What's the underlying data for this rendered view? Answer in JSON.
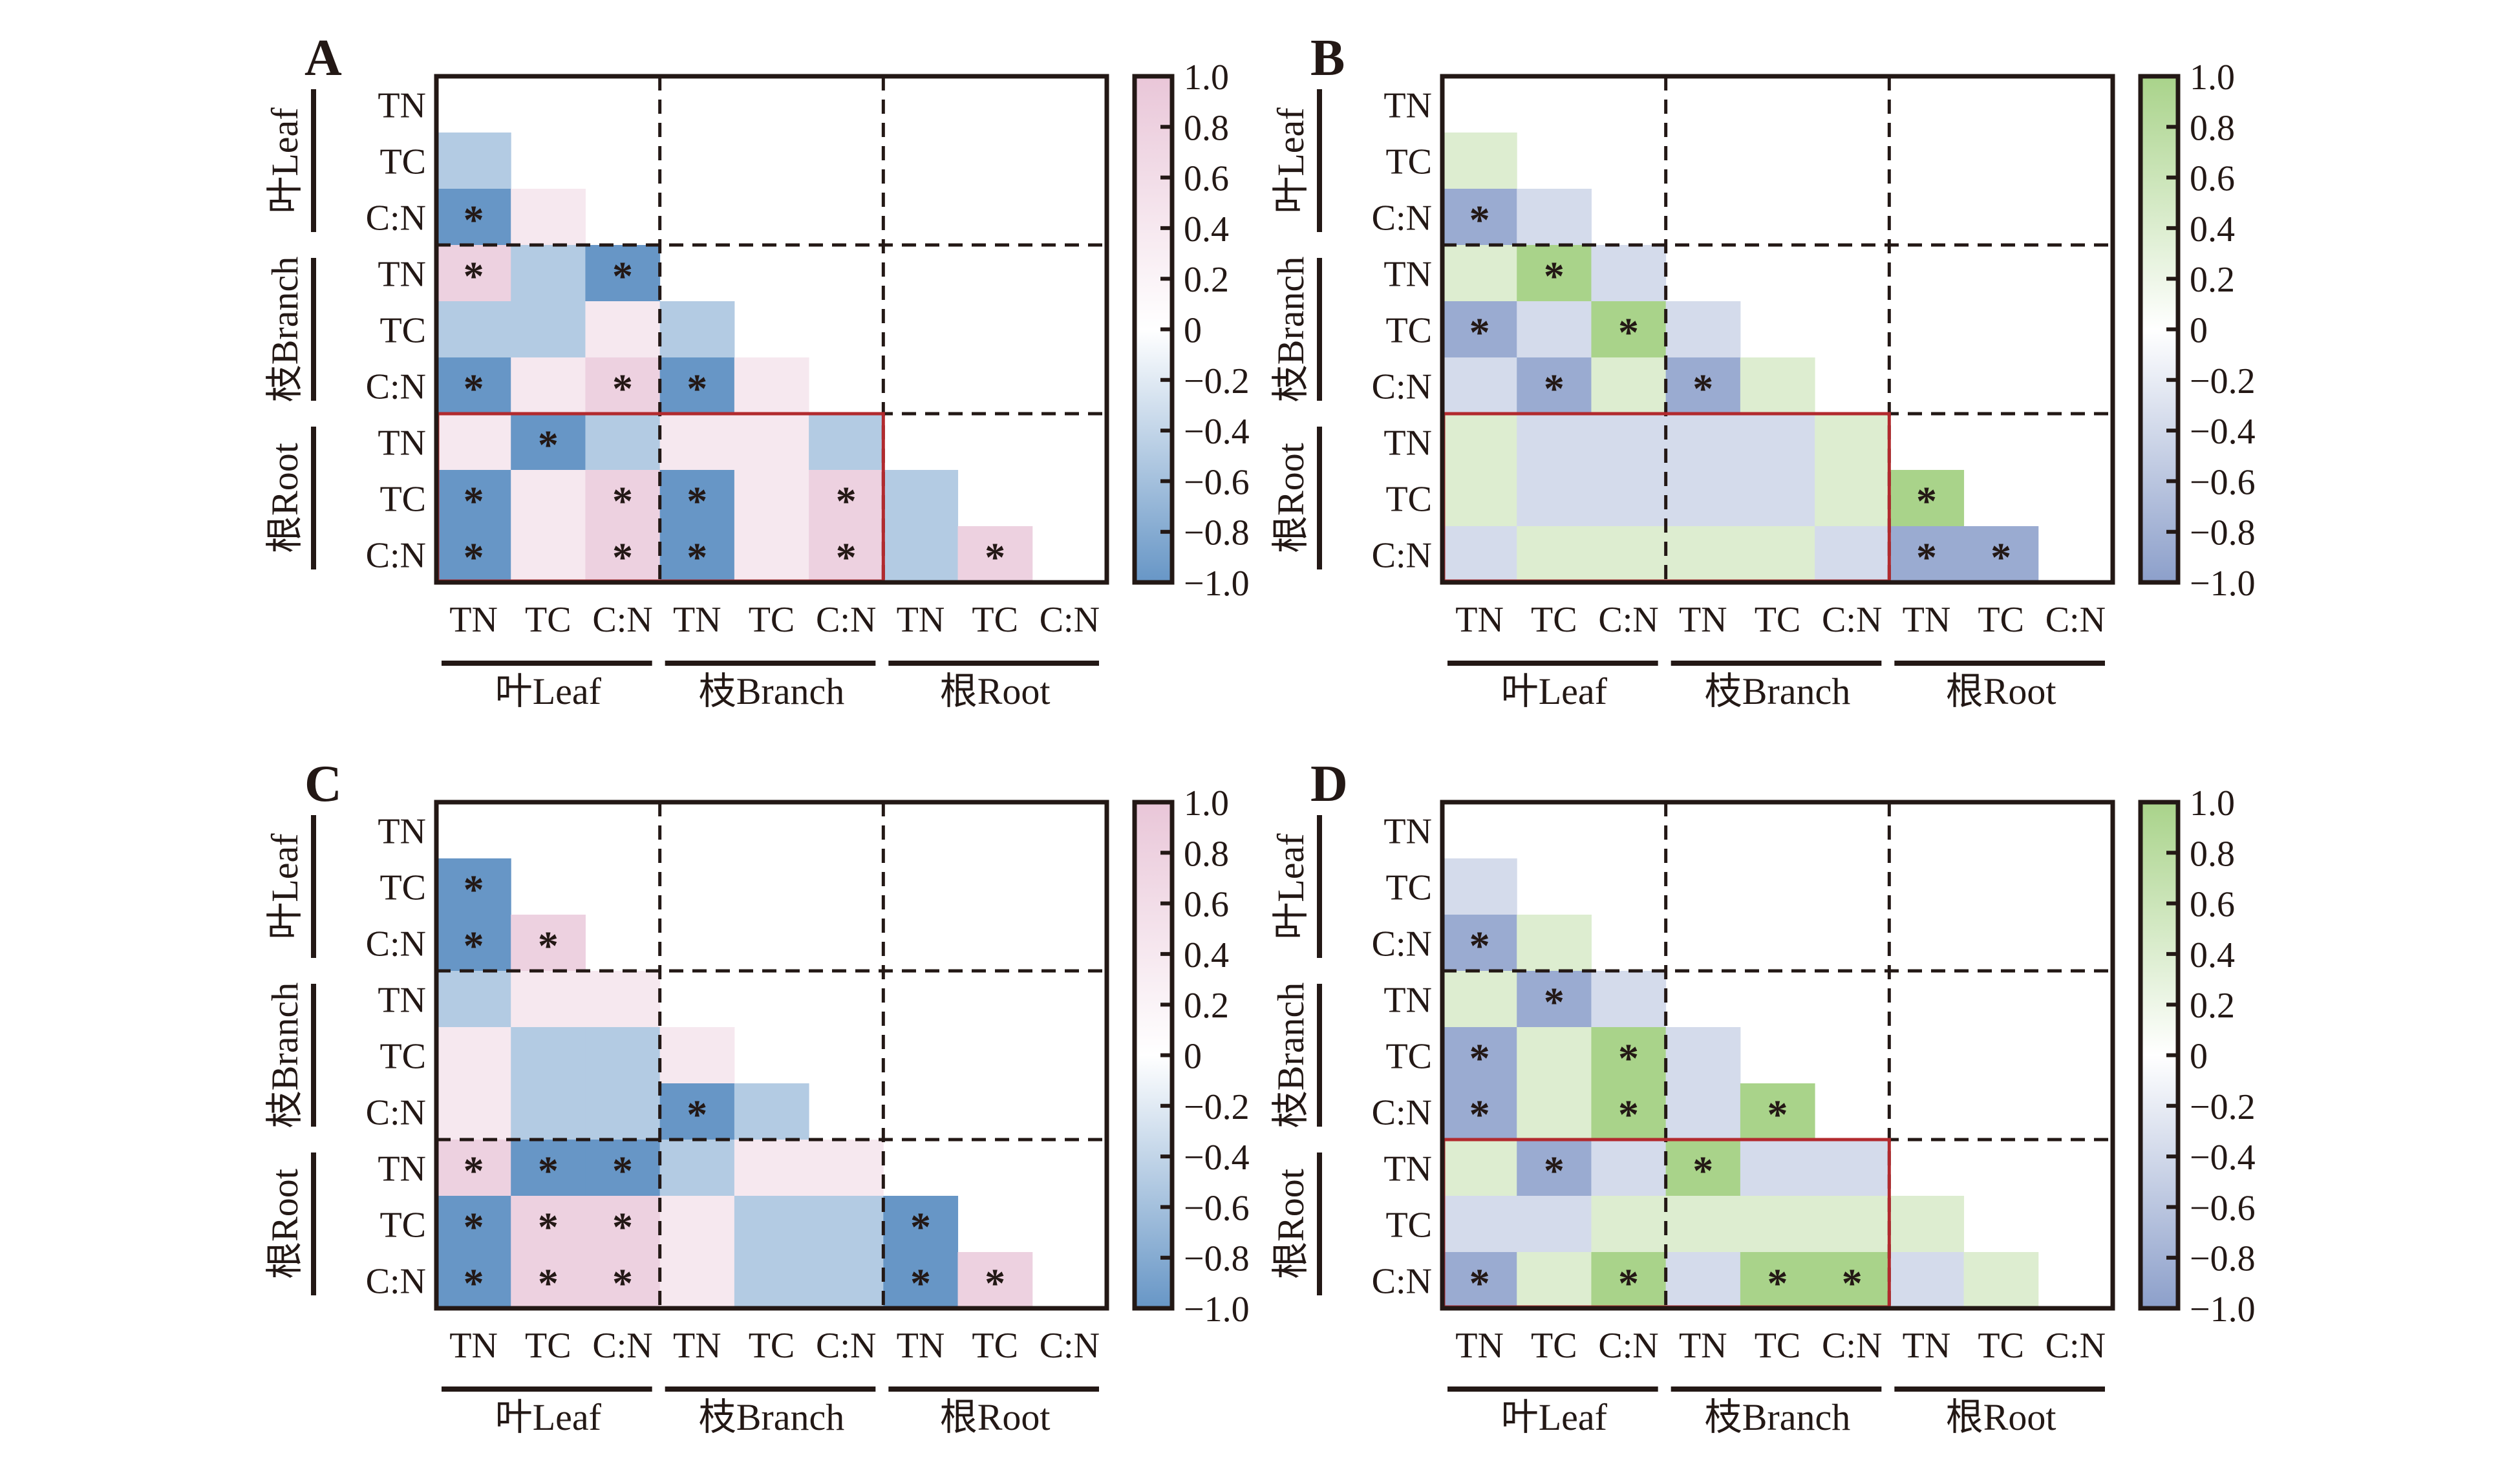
{
  "figure": {
    "variables": [
      "TN",
      "TC",
      "C:N"
    ],
    "groups": [
      "叶Leaf",
      "枝Branch",
      "根Root"
    ],
    "significance_mark": "*"
  },
  "chart_data": [
    {
      "type": "heatmap",
      "panel": "A",
      "palette": "blue-pink",
      "colors": {
        "negative": "#6796c6",
        "zero": "#ffffff",
        "positive": "#e9c6d8"
      },
      "colorbar": {
        "min": -1.0,
        "max": 1.0,
        "ticks": [
          "1.0",
          "0.8",
          "0.6",
          "0.4",
          "0.2",
          "0",
          "−0.2",
          "−0.4",
          "−0.6",
          "−0.8",
          "−1.0"
        ]
      },
      "row_labels": [
        "TN",
        "TC",
        "C:N",
        "TN",
        "TC",
        "C:N",
        "TN",
        "TC",
        "C:N"
      ],
      "col_labels": [
        "TN",
        "TC",
        "C:N",
        "TN",
        "TC",
        "C:N",
        "TN",
        "TC",
        "C:N"
      ],
      "highlight_box": {
        "rows": [
          6,
          8
        ],
        "cols": [
          0,
          5
        ]
      },
      "lower_triangle": [
        [],
        [
          {
            "v": -0.4,
            "s": false
          }
        ],
        [
          {
            "v": -0.8,
            "s": true
          },
          {
            "v": 0.2,
            "s": false
          }
        ],
        [
          {
            "v": 0.4,
            "s": true
          },
          {
            "v": -0.4,
            "s": false
          },
          {
            "v": -0.8,
            "s": true
          }
        ],
        [
          {
            "v": -0.4,
            "s": false
          },
          {
            "v": -0.4,
            "s": false
          },
          {
            "v": 0.2,
            "s": false
          },
          {
            "v": -0.4,
            "s": false
          }
        ],
        [
          {
            "v": -0.8,
            "s": true
          },
          {
            "v": 0.2,
            "s": false
          },
          {
            "v": 0.4,
            "s": true
          },
          {
            "v": -0.8,
            "s": true
          },
          {
            "v": 0.2,
            "s": false
          }
        ],
        [
          {
            "v": 0.2,
            "s": false
          },
          {
            "v": -0.8,
            "s": true
          },
          {
            "v": -0.4,
            "s": false
          },
          {
            "v": 0.2,
            "s": false
          },
          {
            "v": 0.2,
            "s": false
          },
          {
            "v": -0.4,
            "s": false
          }
        ],
        [
          {
            "v": -0.8,
            "s": true
          },
          {
            "v": 0.2,
            "s": false
          },
          {
            "v": 0.4,
            "s": true
          },
          {
            "v": -0.8,
            "s": true
          },
          {
            "v": 0.2,
            "s": false
          },
          {
            "v": 0.4,
            "s": true
          },
          {
            "v": -0.4,
            "s": false
          }
        ],
        [
          {
            "v": -0.8,
            "s": true
          },
          {
            "v": 0.2,
            "s": false
          },
          {
            "v": 0.4,
            "s": true
          },
          {
            "v": -0.8,
            "s": true
          },
          {
            "v": 0.2,
            "s": false
          },
          {
            "v": 0.4,
            "s": true
          },
          {
            "v": -0.4,
            "s": false
          },
          {
            "v": 0.4,
            "s": true
          }
        ]
      ]
    },
    {
      "type": "heatmap",
      "panel": "B",
      "palette": "slate-green",
      "colors": {
        "negative": "#8c9fca",
        "zero": "#ffffff",
        "positive": "#a9d38a"
      },
      "colorbar": {
        "min": -1.0,
        "max": 1.0,
        "ticks": [
          "1.0",
          "0.8",
          "0.6",
          "0.4",
          "0.2",
          "0",
          "−0.2",
          "−0.4",
          "−0.6",
          "−0.8",
          "−1.0"
        ]
      },
      "row_labels": [
        "TN",
        "TC",
        "C:N",
        "TN",
        "TC",
        "C:N",
        "TN",
        "TC",
        "C:N"
      ],
      "col_labels": [
        "TN",
        "TC",
        "C:N",
        "TN",
        "TC",
        "C:N",
        "TN",
        "TC",
        "C:N"
      ],
      "highlight_box": {
        "rows": [
          6,
          8
        ],
        "cols": [
          0,
          5
        ]
      },
      "lower_triangle": [
        [],
        [
          {
            "v": 0.2,
            "s": false
          }
        ],
        [
          {
            "v": -0.7,
            "s": true
          },
          {
            "v": -0.3,
            "s": false
          }
        ],
        [
          {
            "v": 0.2,
            "s": false
          },
          {
            "v": 0.6,
            "s": true
          },
          {
            "v": -0.3,
            "s": false
          }
        ],
        [
          {
            "v": -0.7,
            "s": true
          },
          {
            "v": -0.3,
            "s": false
          },
          {
            "v": 0.6,
            "s": true
          },
          {
            "v": -0.3,
            "s": false
          }
        ],
        [
          {
            "v": -0.3,
            "s": false
          },
          {
            "v": -0.7,
            "s": true
          },
          {
            "v": 0.2,
            "s": false
          },
          {
            "v": -0.7,
            "s": true
          },
          {
            "v": 0.2,
            "s": false
          }
        ],
        [
          {
            "v": 0.2,
            "s": false
          },
          {
            "v": -0.3,
            "s": false
          },
          {
            "v": -0.3,
            "s": false
          },
          {
            "v": -0.3,
            "s": false
          },
          {
            "v": -0.3,
            "s": false
          },
          {
            "v": 0.2,
            "s": false
          }
        ],
        [
          {
            "v": 0.2,
            "s": false
          },
          {
            "v": -0.3,
            "s": false
          },
          {
            "v": -0.3,
            "s": false
          },
          {
            "v": -0.3,
            "s": false
          },
          {
            "v": -0.3,
            "s": false
          },
          {
            "v": 0.2,
            "s": false
          },
          {
            "v": 0.6,
            "s": true
          }
        ],
        [
          {
            "v": -0.3,
            "s": false
          },
          {
            "v": 0.2,
            "s": false
          },
          {
            "v": 0.2,
            "s": false
          },
          {
            "v": 0.2,
            "s": false
          },
          {
            "v": 0.2,
            "s": false
          },
          {
            "v": -0.3,
            "s": false
          },
          {
            "v": -0.7,
            "s": true
          },
          {
            "v": -0.7,
            "s": true
          }
        ]
      ]
    },
    {
      "type": "heatmap",
      "panel": "C",
      "palette": "blue-pink",
      "colors": {
        "negative": "#6796c6",
        "zero": "#ffffff",
        "positive": "#e9c6d8"
      },
      "colorbar": {
        "min": -1.0,
        "max": 1.0,
        "ticks": [
          "1.0",
          "0.8",
          "0.6",
          "0.4",
          "0.2",
          "0",
          "−0.2",
          "−0.4",
          "−0.6",
          "−0.8",
          "−1.0"
        ]
      },
      "row_labels": [
        "TN",
        "TC",
        "C:N",
        "TN",
        "TC",
        "C:N",
        "TN",
        "TC",
        "C:N"
      ],
      "col_labels": [
        "TN",
        "TC",
        "C:N",
        "TN",
        "TC",
        "C:N",
        "TN",
        "TC",
        "C:N"
      ],
      "highlight_box": null,
      "lower_triangle": [
        [],
        [
          {
            "v": -0.8,
            "s": true
          }
        ],
        [
          {
            "v": -0.8,
            "s": true
          },
          {
            "v": 0.4,
            "s": true
          }
        ],
        [
          {
            "v": -0.4,
            "s": false
          },
          {
            "v": 0.2,
            "s": false
          },
          {
            "v": 0.2,
            "s": false
          }
        ],
        [
          {
            "v": 0.2,
            "s": false
          },
          {
            "v": -0.4,
            "s": false
          },
          {
            "v": -0.4,
            "s": false
          },
          {
            "v": 0.2,
            "s": false
          }
        ],
        [
          {
            "v": 0.2,
            "s": false
          },
          {
            "v": -0.4,
            "s": false
          },
          {
            "v": -0.4,
            "s": false
          },
          {
            "v": -0.8,
            "s": true
          },
          {
            "v": -0.4,
            "s": false
          }
        ],
        [
          {
            "v": 0.4,
            "s": true
          },
          {
            "v": -0.8,
            "s": true
          },
          {
            "v": -0.8,
            "s": true
          },
          {
            "v": -0.4,
            "s": false
          },
          {
            "v": 0.2,
            "s": false
          },
          {
            "v": 0.2,
            "s": false
          }
        ],
        [
          {
            "v": -0.8,
            "s": true
          },
          {
            "v": 0.4,
            "s": true
          },
          {
            "v": 0.4,
            "s": true
          },
          {
            "v": 0.2,
            "s": false
          },
          {
            "v": -0.4,
            "s": false
          },
          {
            "v": -0.4,
            "s": false
          },
          {
            "v": -0.8,
            "s": true
          }
        ],
        [
          {
            "v": -0.8,
            "s": true
          },
          {
            "v": 0.4,
            "s": true
          },
          {
            "v": 0.4,
            "s": true
          },
          {
            "v": 0.2,
            "s": false
          },
          {
            "v": -0.4,
            "s": false
          },
          {
            "v": -0.4,
            "s": false
          },
          {
            "v": -0.8,
            "s": true
          },
          {
            "v": 0.4,
            "s": true
          }
        ]
      ]
    },
    {
      "type": "heatmap",
      "panel": "D",
      "palette": "slate-green",
      "colors": {
        "negative": "#8c9fca",
        "zero": "#ffffff",
        "positive": "#a9d38a"
      },
      "colorbar": {
        "min": -1.0,
        "max": 1.0,
        "ticks": [
          "1.0",
          "0.8",
          "0.6",
          "0.4",
          "0.2",
          "0",
          "−0.2",
          "−0.4",
          "−0.6",
          "−0.8",
          "−1.0"
        ]
      },
      "row_labels": [
        "TN",
        "TC",
        "C:N",
        "TN",
        "TC",
        "C:N",
        "TN",
        "TC",
        "C:N"
      ],
      "col_labels": [
        "TN",
        "TC",
        "C:N",
        "TN",
        "TC",
        "C:N",
        "TN",
        "TC",
        "C:N"
      ],
      "highlight_box": {
        "rows": [
          6,
          8
        ],
        "cols": [
          0,
          5
        ]
      },
      "lower_triangle": [
        [],
        [
          {
            "v": -0.3,
            "s": false
          }
        ],
        [
          {
            "v": -0.7,
            "s": true
          },
          {
            "v": 0.2,
            "s": false
          }
        ],
        [
          {
            "v": 0.2,
            "s": false
          },
          {
            "v": -0.7,
            "s": true
          },
          {
            "v": -0.3,
            "s": false
          }
        ],
        [
          {
            "v": -0.7,
            "s": true
          },
          {
            "v": 0.2,
            "s": false
          },
          {
            "v": 0.6,
            "s": true
          },
          {
            "v": -0.3,
            "s": false
          }
        ],
        [
          {
            "v": -0.7,
            "s": true
          },
          {
            "v": 0.2,
            "s": false
          },
          {
            "v": 0.6,
            "s": true
          },
          {
            "v": -0.3,
            "s": false
          },
          {
            "v": 0.6,
            "s": true
          }
        ],
        [
          {
            "v": 0.2,
            "s": false
          },
          {
            "v": -0.7,
            "s": true
          },
          {
            "v": -0.3,
            "s": false
          },
          {
            "v": 0.6,
            "s": true
          },
          {
            "v": -0.3,
            "s": false
          },
          {
            "v": -0.3,
            "s": false
          }
        ],
        [
          {
            "v": -0.3,
            "s": false
          },
          {
            "v": -0.3,
            "s": false
          },
          {
            "v": 0.2,
            "s": false
          },
          {
            "v": 0.2,
            "s": false
          },
          {
            "v": 0.2,
            "s": false
          },
          {
            "v": 0.2,
            "s": false
          },
          {
            "v": 0.2,
            "s": false
          }
        ],
        [
          {
            "v": -0.7,
            "s": true
          },
          {
            "v": 0.2,
            "s": false
          },
          {
            "v": 0.6,
            "s": true
          },
          {
            "v": -0.3,
            "s": false
          },
          {
            "v": 0.6,
            "s": true
          },
          {
            "v": 0.6,
            "s": true
          },
          {
            "v": -0.3,
            "s": false
          },
          {
            "v": 0.2,
            "s": false
          }
        ]
      ]
    }
  ]
}
